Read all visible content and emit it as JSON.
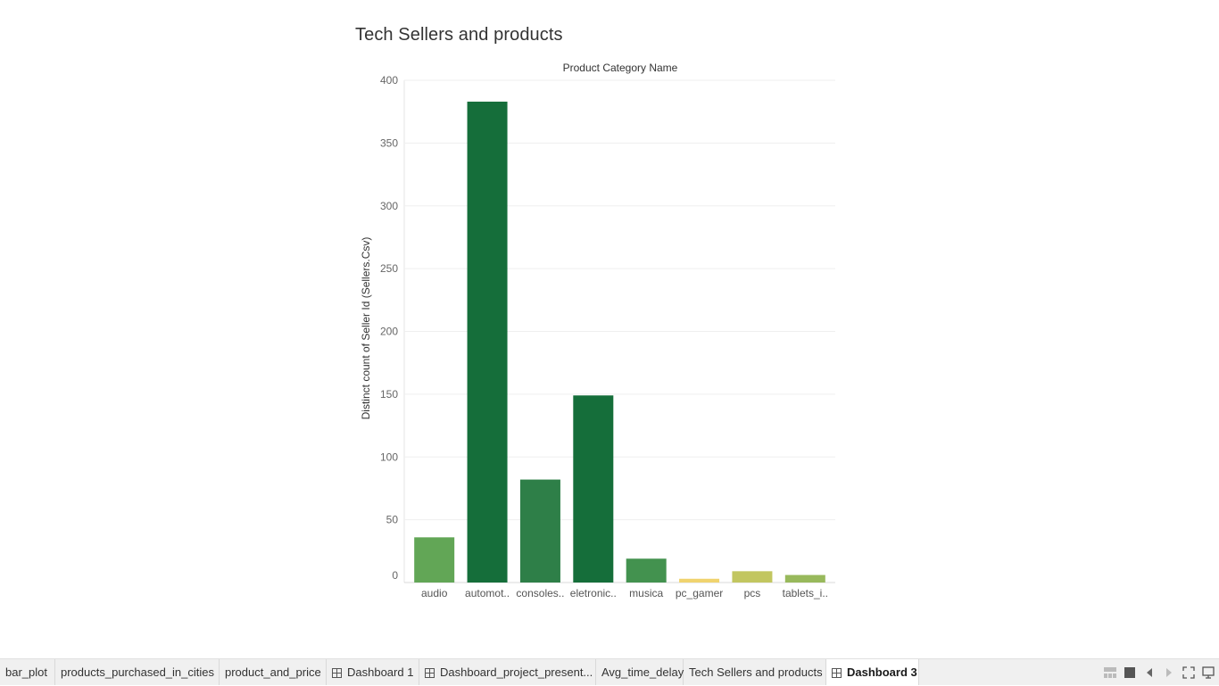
{
  "sheet": {
    "title": "Tech Sellers and products"
  },
  "chart_data": {
    "type": "bar",
    "title": "Tech Sellers and products",
    "xlabel": "Product Category Name",
    "ylabel": "Distinct count of Seller Id (Sellers.Csv)",
    "categories": [
      "audio",
      "automot..",
      "consoles..",
      "eletronic..",
      "musica",
      "pc_gamer",
      "pcs",
      "tablets_i.."
    ],
    "values": [
      36,
      383,
      82,
      149,
      19,
      3,
      9,
      6
    ],
    "colors": [
      "#62a656",
      "#156e3a",
      "#2e7f48",
      "#156e3a",
      "#43924f",
      "#f0d36e",
      "#c2c660",
      "#98b95c"
    ],
    "ylim": [
      0,
      400
    ],
    "yticks": [
      0,
      50,
      100,
      150,
      200,
      250,
      300,
      350,
      400
    ],
    "grid": true
  },
  "tabs": [
    {
      "label": "bar_plot",
      "icon": ""
    },
    {
      "label": "products_purchased_in_cities",
      "icon": ""
    },
    {
      "label": "product_and_price",
      "icon": ""
    },
    {
      "label": "Dashboard 1",
      "icon": "dashboard-icon"
    },
    {
      "label": "Dashboard_project_present...",
      "icon": "dashboard-icon"
    },
    {
      "label": "Avg_time_delay",
      "icon": ""
    },
    {
      "label": "Tech Sellers and products",
      "icon": ""
    },
    {
      "label": "Dashboard 3",
      "icon": "dashboard-icon",
      "active": true
    }
  ],
  "controls": [
    {
      "icon": "show-filmstrip-icon"
    },
    {
      "icon": "show-tabs-icon"
    },
    {
      "icon": "previous-sheet-icon"
    },
    {
      "icon": "next-sheet-icon"
    },
    {
      "icon": "presentation-mode-icon"
    },
    {
      "icon": "device-preview-icon"
    }
  ]
}
